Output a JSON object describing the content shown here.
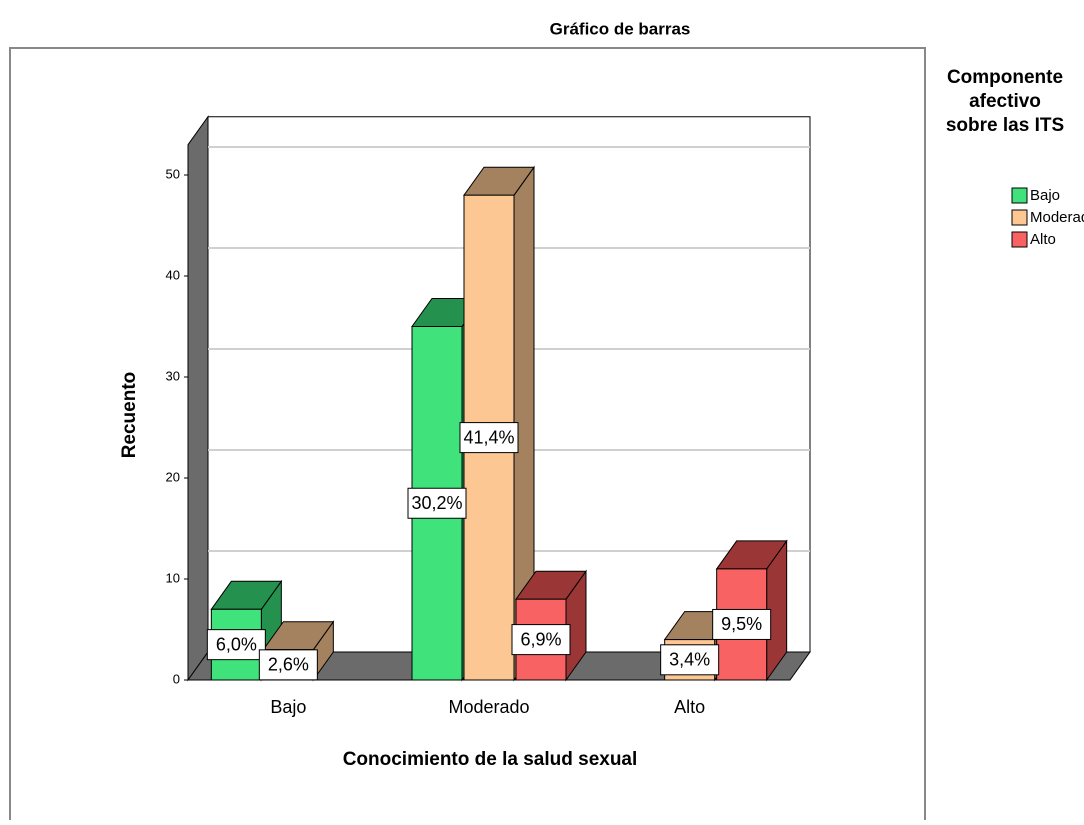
{
  "chart_data": {
    "type": "bar3d",
    "title": "Gráfico de barras",
    "x_label": "Conocimiento de la salud sexual",
    "y_label": "Recuento",
    "legend_title": [
      "Componente",
      "afectivo",
      "sobre las ITS"
    ],
    "legend": "right",
    "grid": true,
    "categories": [
      "Bajo",
      "Moderado",
      "Alto"
    ],
    "series": [
      {
        "name": "Bajo",
        "color": "#3fe27b",
        "dark": "#25914f",
        "values": [
          7,
          35,
          null
        ],
        "percents": [
          6.0,
          30.2,
          null
        ],
        "percent_labels": [
          "6,0%",
          "30,2%",
          null
        ]
      },
      {
        "name": "Moderado",
        "color": "#fdc794",
        "dark": "#a5825f",
        "values": [
          3,
          48,
          4
        ],
        "percents": [
          2.6,
          41.4,
          3.4
        ],
        "percent_labels": [
          "2,6%",
          "41,4%",
          "3,4%"
        ]
      },
      {
        "name": "Alto",
        "color": "#f86263",
        "dark": "#9b3637",
        "values": [
          null,
          8,
          11
        ],
        "percents": [
          null,
          6.9,
          9.5
        ],
        "percent_labels": [
          null,
          "6,9%",
          "9,5%"
        ]
      }
    ],
    "ylim": [
      0,
      53
    ],
    "yticks": [
      0,
      10,
      20,
      30,
      40,
      50
    ]
  }
}
